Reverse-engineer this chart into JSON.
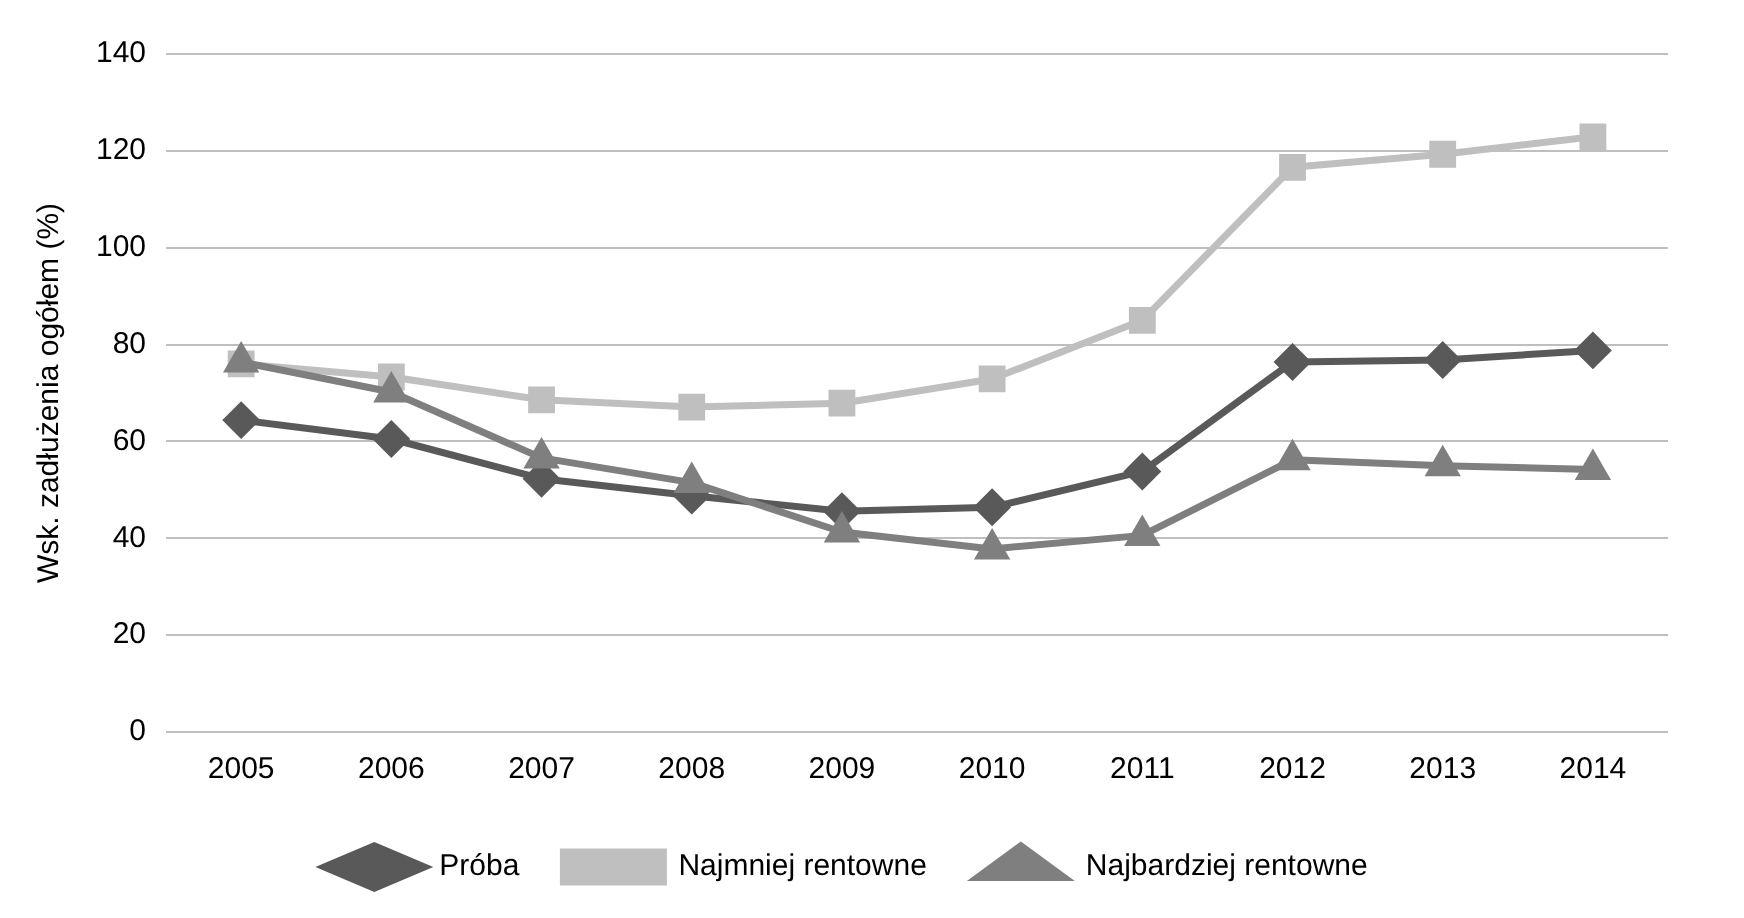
{
  "chart_data": {
    "type": "line",
    "ylabel": "Wsk. zadłużenia ogółem (%)",
    "categories": [
      "2005",
      "2006",
      "2007",
      "2008",
      "2009",
      "2010",
      "2011",
      "2012",
      "2013",
      "2014"
    ],
    "series": [
      {
        "name": "Próba",
        "color": "#595959",
        "marker": "diamond",
        "values": [
          64.4,
          60.5,
          52.3,
          48.8,
          45.6,
          46.4,
          53.8,
          76.4,
          76.8,
          78.8
        ]
      },
      {
        "name": "Najmniej rentowne",
        "color": "#bfbfbf",
        "marker": "square",
        "values": [
          76,
          73.3,
          68.6,
          67.1,
          67.9,
          72.9,
          85,
          116.6,
          119.3,
          122.9
        ]
      },
      {
        "name": "Najbardziej rentowne",
        "color": "#7f7f7f",
        "marker": "triangle",
        "values": [
          76.4,
          70.2,
          56.6,
          51.5,
          41.3,
          37.8,
          40.6,
          56.2,
          55,
          54.2
        ]
      }
    ],
    "ylim": [
      0,
      140
    ],
    "yticks": [
      0,
      20,
      40,
      60,
      80,
      100,
      120,
      140
    ],
    "grid": "y",
    "legend": "bottom",
    "line_style": "solid"
  }
}
